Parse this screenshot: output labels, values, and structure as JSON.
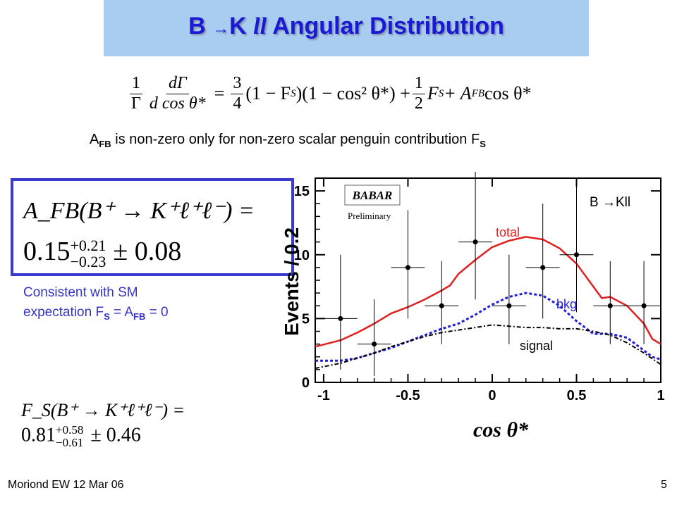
{
  "slide": {
    "title_prefix": "B ",
    "title_arrow": "→",
    "title_k": "K ",
    "title_ll": "ll",
    "title_rest": " Angular Distribution",
    "formula_lhs_num": "1",
    "formula_lhs_den": "Γ",
    "formula_d_num": "dΓ",
    "formula_d_den": "d cos θ*",
    "formula_eq": "=",
    "formula_c1_num": "3",
    "formula_c1_den": "4",
    "formula_term1": "(1 − F",
    "formula_term1_sub": "S",
    "formula_term1b": ")(1 − cos² θ*) +",
    "formula_c2_num": "1",
    "formula_c2_den": "2",
    "formula_term2": "F",
    "formula_term2_sub": "S",
    "formula_term3": " + A",
    "formula_term3_sub": "FB",
    "formula_term3b": " cos θ*",
    "afb_prefix": "A",
    "afb_sub": "FB",
    "afb_text": " is non-zero only for non-zero scalar penguin contribution F",
    "afb_sub2": "S",
    "box_line1": "A_FB(B⁺ → K⁺ℓ⁺ℓ⁻) =",
    "box_value": "0.15",
    "box_sup": "+0.21",
    "box_sub": "−0.23",
    "box_syst": "± 0.08",
    "consistent_line1": "Consistent with SM",
    "consistent_line2_a": "expectation F",
    "consistent_line2_sub1": "S",
    "consistent_line2_b": " = A",
    "consistent_line2_sub2": "FB",
    "consistent_line2_c": " = 0",
    "fs_line1": "F_S(B⁺ → K⁺ℓ⁺ℓ⁻) =",
    "fs_value": "0.81",
    "fs_sup": "+0.58",
    "fs_sub": "−0.61",
    "fs_syst": "± 0.46",
    "footer_left": "Moriond EW 12 Mar 06",
    "footer_right": "5"
  },
  "chart_data": {
    "type": "line",
    "xlabel": "cos θ*",
    "ylabel": "Events / 0.2",
    "xlim": [
      -1.05,
      1.0
    ],
    "ylim": [
      0,
      16
    ],
    "xticks": [
      -1,
      -0.5,
      0,
      0.5,
      1
    ],
    "xtick_labels": [
      "-1",
      "-0.5",
      "0",
      "0.5",
      "1"
    ],
    "yticks": [
      0,
      5,
      10,
      15
    ],
    "ytick_labels": [
      "0",
      "5",
      "10",
      "15"
    ],
    "experiment_logo": "BABAR",
    "preliminary": "Preliminary",
    "process_label": "B →Kll",
    "colors": {
      "total": "#e02020",
      "bkg": "#2020d8",
      "signal": "#000000",
      "points": "#000000"
    },
    "points": [
      {
        "x": -0.9,
        "y": 5.0,
        "yerr_low": 4.0,
        "yerr_high": 5.0,
        "xerr": 0.1
      },
      {
        "x": -0.7,
        "y": 3.0,
        "yerr_low": 2.5,
        "yerr_high": 3.5,
        "xerr": 0.1
      },
      {
        "x": -0.5,
        "y": 9.0,
        "yerr_low": 4.0,
        "yerr_high": 4.5,
        "xerr": 0.1
      },
      {
        "x": -0.3,
        "y": 6.0,
        "yerr_low": 3.0,
        "yerr_high": 3.5,
        "xerr": 0.1
      },
      {
        "x": -0.1,
        "y": 11.0,
        "yerr_low": 4.5,
        "yerr_high": 5.5,
        "xerr": 0.1
      },
      {
        "x": 0.1,
        "y": 6.0,
        "yerr_low": 3.0,
        "yerr_high": 4.0,
        "xerr": 0.1
      },
      {
        "x": 0.3,
        "y": 9.0,
        "yerr_low": 4.0,
        "yerr_high": 5.0,
        "xerr": 0.1
      },
      {
        "x": 0.5,
        "y": 10.0,
        "yerr_low": 4.5,
        "yerr_high": 5.5,
        "xerr": 0.1
      },
      {
        "x": 0.7,
        "y": 6.0,
        "yerr_low": 3.0,
        "yerr_high": 3.5,
        "xerr": 0.1
      },
      {
        "x": 0.9,
        "y": 6.0,
        "yerr_low": 3.0,
        "yerr_high": 3.5,
        "xerr": 0.1
      }
    ],
    "series": [
      {
        "name": "total",
        "style": "solid",
        "x": [
          -1.05,
          -0.9,
          -0.8,
          -0.7,
          -0.6,
          -0.5,
          -0.4,
          -0.3,
          -0.25,
          -0.2,
          -0.1,
          0.0,
          0.1,
          0.2,
          0.3,
          0.4,
          0.5,
          0.6,
          0.65,
          0.7,
          0.8,
          0.9,
          0.95,
          1.0
        ],
        "y": [
          2.8,
          3.3,
          3.9,
          4.6,
          5.4,
          5.9,
          6.5,
          7.2,
          7.6,
          8.5,
          9.6,
          10.6,
          11.1,
          11.4,
          11.2,
          10.5,
          9.3,
          7.5,
          6.6,
          6.7,
          6.0,
          4.6,
          3.4,
          3.0
        ]
      },
      {
        "name": "bkg",
        "style": "dashed",
        "x": [
          -1.05,
          -0.9,
          -0.8,
          -0.7,
          -0.6,
          -0.5,
          -0.4,
          -0.3,
          -0.2,
          -0.1,
          0.0,
          0.1,
          0.2,
          0.3,
          0.4,
          0.5,
          0.6,
          0.7,
          0.8,
          0.9,
          0.95,
          1.0
        ],
        "y": [
          1.7,
          1.7,
          1.9,
          2.3,
          2.7,
          3.2,
          3.7,
          4.2,
          4.6,
          5.3,
          6.1,
          6.7,
          7.0,
          6.8,
          6.0,
          4.8,
          3.8,
          3.8,
          3.5,
          2.5,
          2.0,
          1.8
        ]
      },
      {
        "name": "signal",
        "style": "dashdot",
        "x": [
          -1.05,
          -0.9,
          -0.8,
          -0.7,
          -0.6,
          -0.5,
          -0.4,
          -0.3,
          -0.2,
          -0.1,
          0.0,
          0.1,
          0.2,
          0.3,
          0.4,
          0.5,
          0.6,
          0.7,
          0.8,
          0.9,
          1.0
        ],
        "y": [
          1.1,
          1.5,
          1.9,
          2.3,
          2.8,
          3.2,
          3.6,
          3.9,
          4.1,
          4.3,
          4.5,
          4.4,
          4.3,
          4.3,
          4.2,
          4.2,
          4.0,
          3.7,
          3.1,
          2.3,
          1.4
        ]
      }
    ],
    "series_labels": [
      {
        "name": "total",
        "text": "total",
        "color": "#e02020"
      },
      {
        "name": "bkg",
        "text": "bkg",
        "color": "#2020d8"
      },
      {
        "name": "signal",
        "text": "signal",
        "color": "#000000"
      }
    ]
  }
}
